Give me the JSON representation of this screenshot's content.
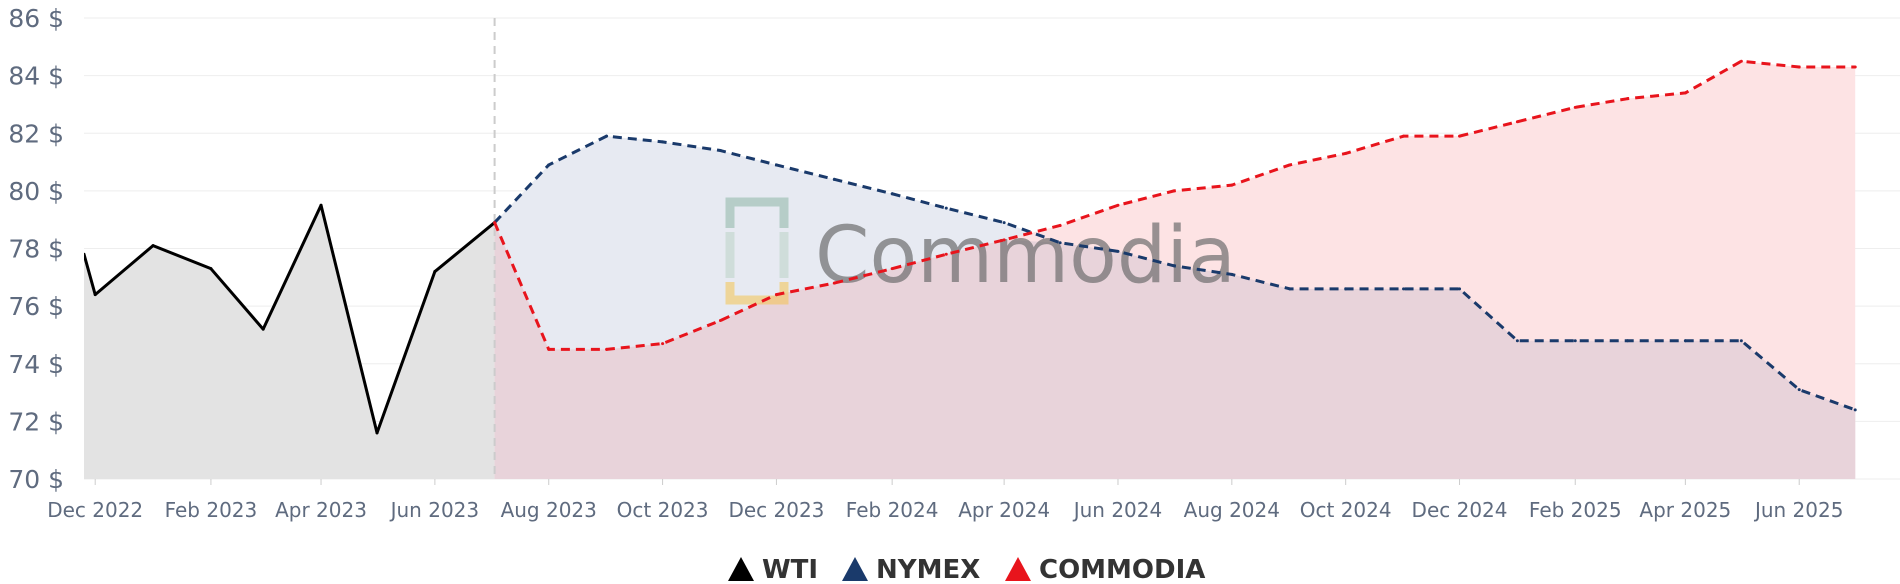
{
  "chart_data": {
    "type": "line",
    "ylim": [
      70,
      86
    ],
    "y_ticks": [
      "70 $",
      "72 $",
      "74 $",
      "76 $",
      "78 $",
      "80 $",
      "82 $",
      "84 $",
      "86 $"
    ],
    "y_tick_values": [
      70,
      72,
      74,
      76,
      78,
      80,
      82,
      84,
      86
    ],
    "x_range": [
      "2022-11-25",
      "2025-07-25"
    ],
    "x_ticks": [
      {
        "date": "2022-12-01",
        "label": "Dec 2022"
      },
      {
        "date": "2023-02-01",
        "label": "Feb 2023"
      },
      {
        "date": "2023-04-01",
        "label": "Apr 2023"
      },
      {
        "date": "2023-06-01",
        "label": "Jun 2023"
      },
      {
        "date": "2023-08-01",
        "label": "Aug 2023"
      },
      {
        "date": "2023-10-01",
        "label": "Oct 2023"
      },
      {
        "date": "2023-12-01",
        "label": "Dec 2023"
      },
      {
        "date": "2024-02-01",
        "label": "Feb 2024"
      },
      {
        "date": "2024-04-01",
        "label": "Apr 2024"
      },
      {
        "date": "2024-06-01",
        "label": "Jun 2024"
      },
      {
        "date": "2024-08-01",
        "label": "Aug 2024"
      },
      {
        "date": "2024-10-01",
        "label": "Oct 2024"
      },
      {
        "date": "2024-12-01",
        "label": "Dec 2024"
      },
      {
        "date": "2025-02-01",
        "label": "Feb 2025"
      },
      {
        "date": "2025-04-01",
        "label": "Apr 2025"
      },
      {
        "date": "2025-06-01",
        "label": "Jun 2025"
      }
    ],
    "forecast_start": "2023-07-03",
    "grid": true,
    "legend_position": "bottom-center",
    "series": [
      {
        "name": "WTI",
        "color": "#000000",
        "dashed": false,
        "points": [
          {
            "x": "2022-11-25",
            "y": 77.8
          },
          {
            "x": "2022-12-01",
            "y": 76.4
          },
          {
            "x": "2023-01-01",
            "y": 78.1
          },
          {
            "x": "2023-02-01",
            "y": 77.3
          },
          {
            "x": "2023-03-01",
            "y": 75.2
          },
          {
            "x": "2023-04-01",
            "y": 79.5
          },
          {
            "x": "2023-05-01",
            "y": 71.6
          },
          {
            "x": "2023-06-01",
            "y": 77.2
          },
          {
            "x": "2023-07-03",
            "y": 78.9
          }
        ]
      },
      {
        "name": "NYMEX",
        "color": "#1a3a6b",
        "dashed": true,
        "points": [
          {
            "x": "2023-07-03",
            "y": 78.9
          },
          {
            "x": "2023-08-01",
            "y": 80.9
          },
          {
            "x": "2023-09-01",
            "y": 81.9
          },
          {
            "x": "2023-10-01",
            "y": 81.7
          },
          {
            "x": "2023-11-01",
            "y": 81.4
          },
          {
            "x": "2023-12-01",
            "y": 80.9
          },
          {
            "x": "2024-01-01",
            "y": 80.4
          },
          {
            "x": "2024-02-01",
            "y": 79.9
          },
          {
            "x": "2024-03-01",
            "y": 79.4
          },
          {
            "x": "2024-04-01",
            "y": 78.9
          },
          {
            "x": "2024-05-01",
            "y": 78.2
          },
          {
            "x": "2024-06-01",
            "y": 77.9
          },
          {
            "x": "2024-07-01",
            "y": 77.4
          },
          {
            "x": "2024-08-01",
            "y": 77.1
          },
          {
            "x": "2024-09-01",
            "y": 76.6
          },
          {
            "x": "2024-10-01",
            "y": 76.6
          },
          {
            "x": "2024-11-01",
            "y": 76.6
          },
          {
            "x": "2024-12-01",
            "y": 76.6
          },
          {
            "x": "2025-01-01",
            "y": 74.8
          },
          {
            "x": "2025-02-01",
            "y": 74.8
          },
          {
            "x": "2025-03-01",
            "y": 74.8
          },
          {
            "x": "2025-04-01",
            "y": 74.8
          },
          {
            "x": "2025-05-01",
            "y": 74.8
          },
          {
            "x": "2025-06-01",
            "y": 73.1
          },
          {
            "x": "2025-07-01",
            "y": 72.4
          }
        ]
      },
      {
        "name": "COMMODIA",
        "color": "#e8141c",
        "dashed": true,
        "points": [
          {
            "x": "2023-07-03",
            "y": 78.9
          },
          {
            "x": "2023-08-01",
            "y": 74.5
          },
          {
            "x": "2023-09-01",
            "y": 74.5
          },
          {
            "x": "2023-10-01",
            "y": 74.7
          },
          {
            "x": "2023-11-01",
            "y": 75.5
          },
          {
            "x": "2023-12-01",
            "y": 76.4
          },
          {
            "x": "2024-01-01",
            "y": 76.8
          },
          {
            "x": "2024-02-01",
            "y": 77.3
          },
          {
            "x": "2024-03-01",
            "y": 77.8
          },
          {
            "x": "2024-04-01",
            "y": 78.3
          },
          {
            "x": "2024-05-01",
            "y": 78.8
          },
          {
            "x": "2024-06-01",
            "y": 79.5
          },
          {
            "x": "2024-07-01",
            "y": 80.0
          },
          {
            "x": "2024-08-01",
            "y": 80.2
          },
          {
            "x": "2024-09-01",
            "y": 80.9
          },
          {
            "x": "2024-10-01",
            "y": 81.3
          },
          {
            "x": "2024-11-01",
            "y": 81.9
          },
          {
            "x": "2024-12-01",
            "y": 81.9
          },
          {
            "x": "2025-01-01",
            "y": 82.4
          },
          {
            "x": "2025-02-01",
            "y": 82.9
          },
          {
            "x": "2025-03-01",
            "y": 83.2
          },
          {
            "x": "2025-04-01",
            "y": 83.4
          },
          {
            "x": "2025-05-01",
            "y": 84.5
          },
          {
            "x": "2025-06-01",
            "y": 84.3
          },
          {
            "x": "2025-07-01",
            "y": 84.3
          }
        ]
      }
    ]
  },
  "legend": [
    {
      "label": "WTI",
      "color": "#000000"
    },
    {
      "label": "NYMEX",
      "color": "#1a3a6b"
    },
    {
      "label": "COMMODIA",
      "color": "#e8141c"
    }
  ],
  "watermark": {
    "text": "Commodia",
    "icon": "commodia-logo-icon"
  },
  "colors": {
    "wti_fill": "#e2e2e2",
    "nymex_fill": "#e6e9f1",
    "commodia_fill": "#fde1e3",
    "overlap_fill": "#e8d3da",
    "grid": "#eeeeee",
    "divider": "#cccccc",
    "tick_text": "#5f6b7f"
  }
}
